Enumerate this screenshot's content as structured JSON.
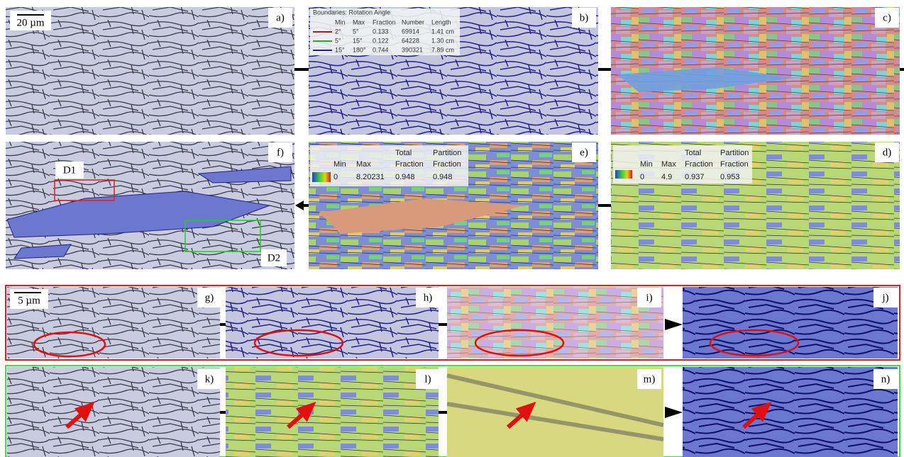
{
  "labels": [
    "a)",
    "b)",
    "c)",
    "f)",
    "e)",
    "d)",
    "g)",
    "h)",
    "i)",
    "j)",
    "k)",
    "l)",
    "m)",
    "n)"
  ],
  "scale_bars": [
    "20 µm",
    "5 µm"
  ],
  "regions": [
    "D1",
    "D2"
  ],
  "boundaries": {
    "title": "Boundaries: Rotation Angle",
    "header": [
      "Min",
      "Max",
      "Fraction",
      "Number",
      "Length"
    ],
    "rows": [
      [
        "2°",
        "5°",
        "0.133",
        "69914",
        "1.41 cm"
      ],
      [
        "5°",
        "15°",
        "0.122",
        "64228",
        "1.30 cm"
      ],
      [
        "15°",
        "180°",
        "0.744",
        "390321",
        "7.89 cm"
      ]
    ]
  },
  "table_e": {
    "header_top": [
      "Total",
      "Partition"
    ],
    "header": [
      "Min",
      "Max",
      "Fraction",
      "Fraction"
    ],
    "row": [
      "0",
      "8.20231",
      "0.948",
      "0.948"
    ]
  },
  "table_d": {
    "header_top": [
      "Total",
      "Partition"
    ],
    "header": [
      "Min",
      "Max",
      "Fraction",
      "Fraction"
    ],
    "row": [
      "0",
      "4.9",
      "0.937",
      "0.953"
    ]
  }
}
